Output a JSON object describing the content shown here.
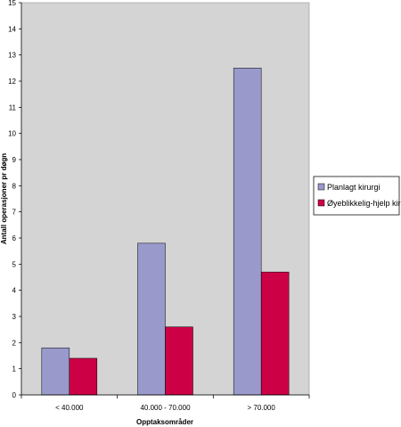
{
  "chart_data": {
    "type": "bar",
    "title": "",
    "xlabel": "Opptaksområder",
    "ylabel": "Antall operasjoner pr døgn",
    "categories": [
      "< 40.000",
      "40.000 - 70.000",
      "> 70.000"
    ],
    "series": [
      {
        "name": "Planlagt kirurgi",
        "values": [
          1.8,
          5.8,
          12.5
        ],
        "color": "#9999cc"
      },
      {
        "name": "Øyeblikkelig-hjelp kirurgi",
        "values": [
          1.4,
          2.6,
          4.7
        ],
        "color": "#cc0044"
      }
    ],
    "ylim": [
      0,
      15
    ],
    "yticks": [
      0,
      1,
      2,
      3,
      4,
      5,
      6,
      7,
      8,
      9,
      10,
      11,
      12,
      13,
      14,
      15
    ],
    "grid": false,
    "plot_background": "#d4d4d4",
    "legend_position": "right"
  }
}
